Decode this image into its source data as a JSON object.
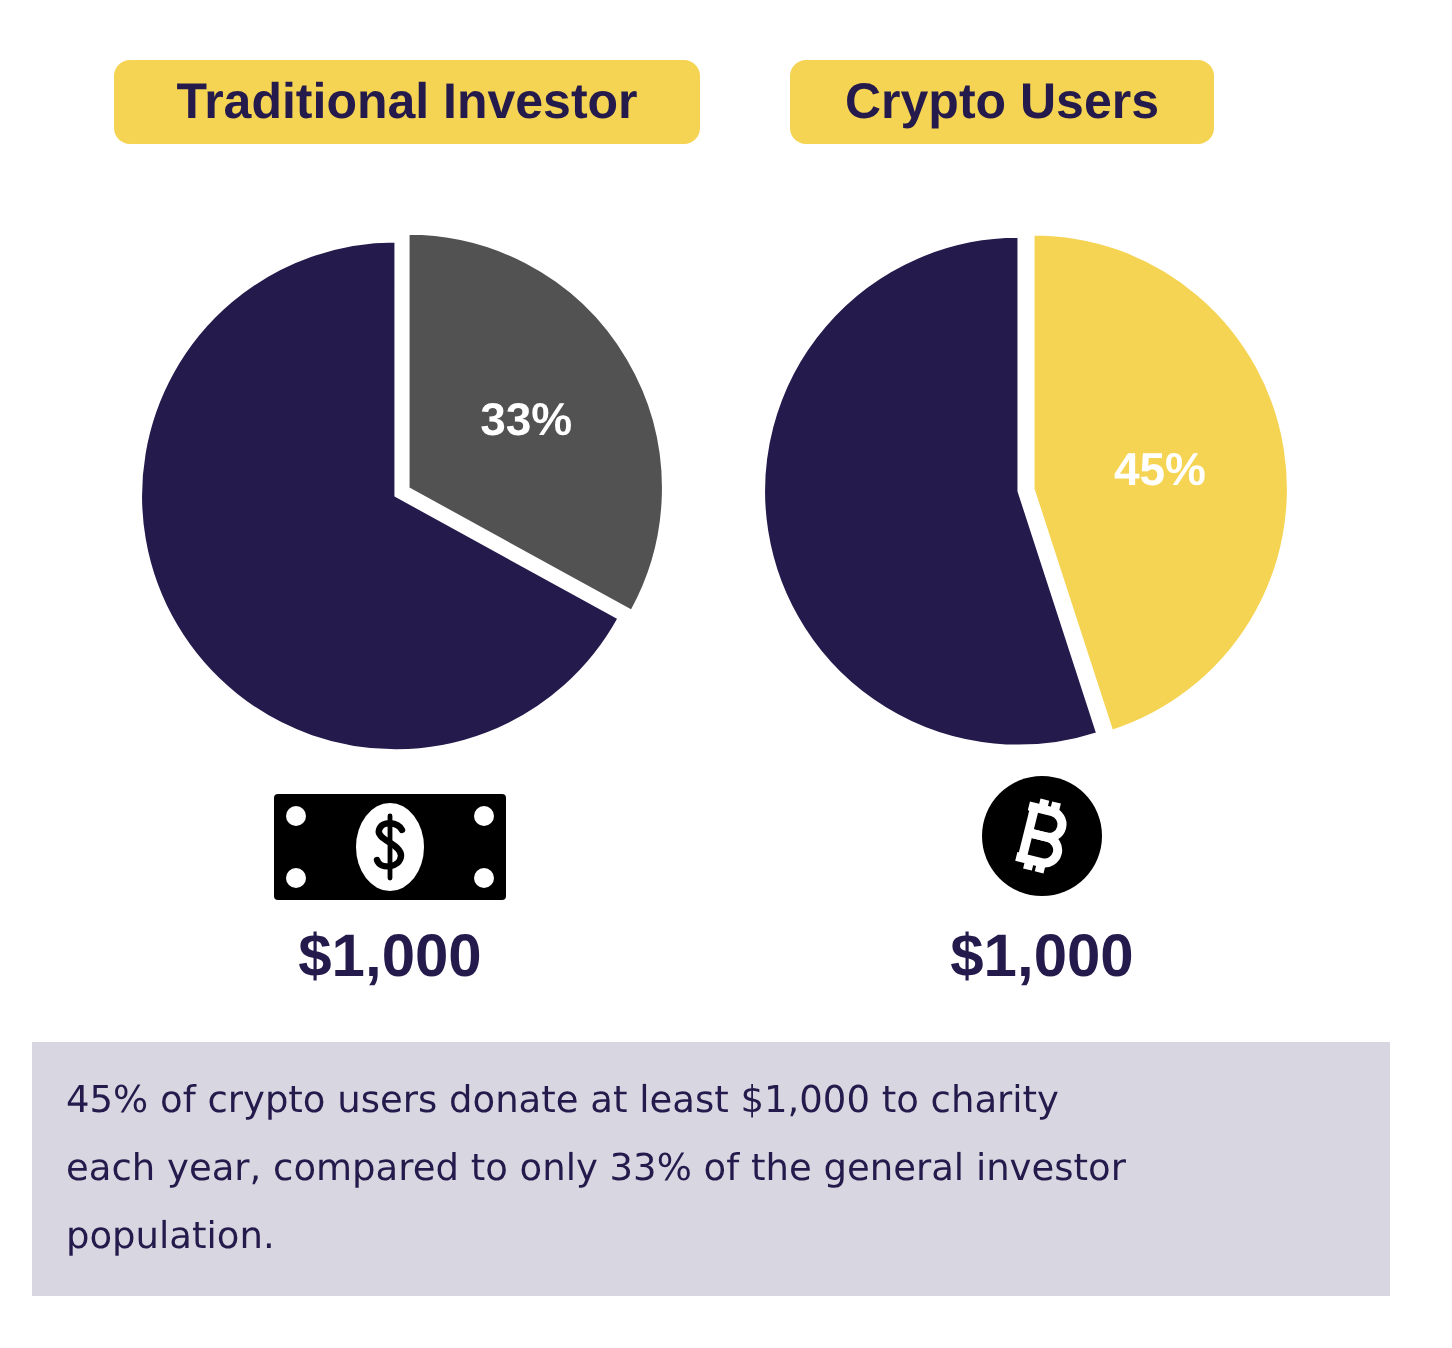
{
  "chart_data": [
    {
      "type": "pie",
      "title": "Traditional Investor",
      "categories": [
        null,
        null
      ],
      "values": [
        33,
        67
      ],
      "colors": [
        "#525252",
        "#241a4b"
      ],
      "value_labels": [
        "33%",
        null
      ],
      "annotations": [
        "$1,000"
      ]
    },
    {
      "type": "pie",
      "title": "Crypto Users",
      "categories": [
        null,
        null
      ],
      "values": [
        45,
        55
      ],
      "colors": [
        "#f5d453",
        "#241a4b"
      ],
      "value_labels": [
        "45%",
        null
      ],
      "annotations": [
        "$1,000"
      ]
    },
    {
      "type": "other",
      "annotations": [
        "45% of crypto users donate at least $1,000 to charity each year, compared to only 33% of the general investor population."
      ]
    }
  ]
}
